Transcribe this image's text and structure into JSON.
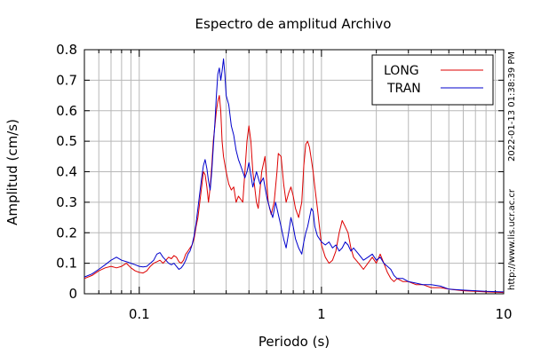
{
  "chart_data": {
    "type": "line",
    "title": "Espectro de amplitud Archivo",
    "xlabel": "Periodo (s)",
    "ylabel": "Amplitud (cm/s)",
    "x_scale": "log",
    "xlim": [
      0.05,
      10
    ],
    "ylim": [
      0,
      0.8
    ],
    "grid": true,
    "legend_position": "top-right",
    "x_ticks": [
      {
        "value": 0.1,
        "label": "0.1"
      },
      {
        "value": 1,
        "label": "1"
      },
      {
        "value": 10,
        "label": "10"
      }
    ],
    "y_ticks": [
      {
        "value": 0,
        "label": "0"
      },
      {
        "value": 0.1,
        "label": "0.1"
      },
      {
        "value": 0.2,
        "label": "0.2"
      },
      {
        "value": 0.3,
        "label": "0.3"
      },
      {
        "value": 0.4,
        "label": "0.4"
      },
      {
        "value": 0.5,
        "label": "0.5"
      },
      {
        "value": 0.6,
        "label": "0.6"
      },
      {
        "value": 0.7,
        "label": "0.7"
      },
      {
        "value": 0.8,
        "label": "0.8"
      }
    ],
    "series": [
      {
        "name": "LONG",
        "color": "#dd0000",
        "points": [
          [
            0.05,
            0.05
          ],
          [
            0.055,
            0.06
          ],
          [
            0.06,
            0.075
          ],
          [
            0.065,
            0.085
          ],
          [
            0.07,
            0.09
          ],
          [
            0.075,
            0.085
          ],
          [
            0.08,
            0.09
          ],
          [
            0.085,
            0.1
          ],
          [
            0.09,
            0.085
          ],
          [
            0.095,
            0.075
          ],
          [
            0.1,
            0.07
          ],
          [
            0.105,
            0.068
          ],
          [
            0.11,
            0.075
          ],
          [
            0.115,
            0.09
          ],
          [
            0.12,
            0.1
          ],
          [
            0.125,
            0.105
          ],
          [
            0.13,
            0.11
          ],
          [
            0.135,
            0.1
          ],
          [
            0.14,
            0.11
          ],
          [
            0.145,
            0.12
          ],
          [
            0.15,
            0.115
          ],
          [
            0.155,
            0.125
          ],
          [
            0.16,
            0.12
          ],
          [
            0.165,
            0.105
          ],
          [
            0.17,
            0.1
          ],
          [
            0.175,
            0.11
          ],
          [
            0.18,
            0.13
          ],
          [
            0.185,
            0.14
          ],
          [
            0.19,
            0.15
          ],
          [
            0.195,
            0.16
          ],
          [
            0.2,
            0.18
          ],
          [
            0.205,
            0.22
          ],
          [
            0.21,
            0.25
          ],
          [
            0.215,
            0.3
          ],
          [
            0.22,
            0.35
          ],
          [
            0.225,
            0.4
          ],
          [
            0.23,
            0.39
          ],
          [
            0.235,
            0.35
          ],
          [
            0.24,
            0.3
          ],
          [
            0.245,
            0.35
          ],
          [
            0.25,
            0.42
          ],
          [
            0.255,
            0.5
          ],
          [
            0.26,
            0.55
          ],
          [
            0.265,
            0.6
          ],
          [
            0.27,
            0.63
          ],
          [
            0.275,
            0.65
          ],
          [
            0.28,
            0.6
          ],
          [
            0.285,
            0.5
          ],
          [
            0.29,
            0.45
          ],
          [
            0.3,
            0.4
          ],
          [
            0.31,
            0.36
          ],
          [
            0.32,
            0.34
          ],
          [
            0.33,
            0.35
          ],
          [
            0.34,
            0.3
          ],
          [
            0.35,
            0.32
          ],
          [
            0.36,
            0.31
          ],
          [
            0.37,
            0.3
          ],
          [
            0.38,
            0.4
          ],
          [
            0.39,
            0.5
          ],
          [
            0.4,
            0.55
          ],
          [
            0.41,
            0.5
          ],
          [
            0.42,
            0.4
          ],
          [
            0.43,
            0.35
          ],
          [
            0.44,
            0.3
          ],
          [
            0.45,
            0.28
          ],
          [
            0.47,
            0.4
          ],
          [
            0.49,
            0.45
          ],
          [
            0.51,
            0.3
          ],
          [
            0.53,
            0.26
          ],
          [
            0.55,
            0.3
          ],
          [
            0.57,
            0.4
          ],
          [
            0.58,
            0.46
          ],
          [
            0.6,
            0.45
          ],
          [
            0.62,
            0.36
          ],
          [
            0.64,
            0.3
          ],
          [
            0.66,
            0.33
          ],
          [
            0.68,
            0.35
          ],
          [
            0.7,
            0.32
          ],
          [
            0.72,
            0.28
          ],
          [
            0.75,
            0.25
          ],
          [
            0.78,
            0.3
          ],
          [
            0.8,
            0.42
          ],
          [
            0.82,
            0.49
          ],
          [
            0.84,
            0.5
          ],
          [
            0.86,
            0.48
          ],
          [
            0.88,
            0.44
          ],
          [
            0.9,
            0.4
          ],
          [
            0.92,
            0.35
          ],
          [
            0.95,
            0.28
          ],
          [
            1.0,
            0.16
          ],
          [
            1.05,
            0.12
          ],
          [
            1.1,
            0.1
          ],
          [
            1.15,
            0.11
          ],
          [
            1.2,
            0.14
          ],
          [
            1.25,
            0.2
          ],
          [
            1.3,
            0.24
          ],
          [
            1.35,
            0.22
          ],
          [
            1.4,
            0.2
          ],
          [
            1.45,
            0.15
          ],
          [
            1.5,
            0.12
          ],
          [
            1.6,
            0.1
          ],
          [
            1.7,
            0.08
          ],
          [
            1.8,
            0.1
          ],
          [
            1.9,
            0.12
          ],
          [
            2.0,
            0.1
          ],
          [
            2.1,
            0.13
          ],
          [
            2.2,
            0.1
          ],
          [
            2.3,
            0.07
          ],
          [
            2.4,
            0.05
          ],
          [
            2.5,
            0.04
          ],
          [
            2.6,
            0.05
          ],
          [
            2.8,
            0.04
          ],
          [
            3.0,
            0.04
          ],
          [
            3.3,
            0.03
          ],
          [
            3.6,
            0.03
          ],
          [
            4.0,
            0.02
          ],
          [
            4.5,
            0.02
          ],
          [
            5.0,
            0.015
          ],
          [
            6.0,
            0.01
          ],
          [
            7.0,
            0.008
          ],
          [
            8.0,
            0.006
          ],
          [
            9.0,
            0.005
          ],
          [
            10.0,
            0.004
          ]
        ]
      },
      {
        "name": "TRAN",
        "color": "#0000cc",
        "points": [
          [
            0.05,
            0.055
          ],
          [
            0.055,
            0.065
          ],
          [
            0.06,
            0.08
          ],
          [
            0.065,
            0.095
          ],
          [
            0.07,
            0.11
          ],
          [
            0.075,
            0.12
          ],
          [
            0.08,
            0.11
          ],
          [
            0.085,
            0.105
          ],
          [
            0.09,
            0.1
          ],
          [
            0.095,
            0.095
          ],
          [
            0.1,
            0.09
          ],
          [
            0.105,
            0.088
          ],
          [
            0.11,
            0.09
          ],
          [
            0.115,
            0.1
          ],
          [
            0.12,
            0.11
          ],
          [
            0.125,
            0.13
          ],
          [
            0.13,
            0.135
          ],
          [
            0.135,
            0.12
          ],
          [
            0.14,
            0.11
          ],
          [
            0.145,
            0.1
          ],
          [
            0.15,
            0.095
          ],
          [
            0.155,
            0.1
          ],
          [
            0.16,
            0.09
          ],
          [
            0.165,
            0.08
          ],
          [
            0.17,
            0.085
          ],
          [
            0.175,
            0.095
          ],
          [
            0.18,
            0.11
          ],
          [
            0.185,
            0.13
          ],
          [
            0.19,
            0.14
          ],
          [
            0.195,
            0.16
          ],
          [
            0.2,
            0.19
          ],
          [
            0.205,
            0.23
          ],
          [
            0.21,
            0.28
          ],
          [
            0.215,
            0.33
          ],
          [
            0.22,
            0.38
          ],
          [
            0.225,
            0.42
          ],
          [
            0.23,
            0.44
          ],
          [
            0.235,
            0.41
          ],
          [
            0.24,
            0.37
          ],
          [
            0.245,
            0.34
          ],
          [
            0.25,
            0.4
          ],
          [
            0.255,
            0.48
          ],
          [
            0.26,
            0.56
          ],
          [
            0.265,
            0.65
          ],
          [
            0.27,
            0.72
          ],
          [
            0.275,
            0.74
          ],
          [
            0.28,
            0.7
          ],
          [
            0.285,
            0.73
          ],
          [
            0.29,
            0.77
          ],
          [
            0.295,
            0.72
          ],
          [
            0.3,
            0.65
          ],
          [
            0.31,
            0.62
          ],
          [
            0.32,
            0.55
          ],
          [
            0.33,
            0.52
          ],
          [
            0.34,
            0.47
          ],
          [
            0.35,
            0.44
          ],
          [
            0.36,
            0.42
          ],
          [
            0.37,
            0.4
          ],
          [
            0.38,
            0.38
          ],
          [
            0.39,
            0.4
          ],
          [
            0.4,
            0.43
          ],
          [
            0.41,
            0.39
          ],
          [
            0.42,
            0.35
          ],
          [
            0.44,
            0.4
          ],
          [
            0.46,
            0.36
          ],
          [
            0.48,
            0.38
          ],
          [
            0.5,
            0.32
          ],
          [
            0.52,
            0.28
          ],
          [
            0.54,
            0.25
          ],
          [
            0.56,
            0.3
          ],
          [
            0.58,
            0.26
          ],
          [
            0.6,
            0.22
          ],
          [
            0.62,
            0.18
          ],
          [
            0.64,
            0.15
          ],
          [
            0.66,
            0.2
          ],
          [
            0.68,
            0.25
          ],
          [
            0.7,
            0.22
          ],
          [
            0.72,
            0.18
          ],
          [
            0.75,
            0.15
          ],
          [
            0.78,
            0.13
          ],
          [
            0.8,
            0.17
          ],
          [
            0.82,
            0.2
          ],
          [
            0.84,
            0.22
          ],
          [
            0.86,
            0.25
          ],
          [
            0.88,
            0.28
          ],
          [
            0.9,
            0.27
          ],
          [
            0.92,
            0.22
          ],
          [
            0.95,
            0.19
          ],
          [
            1.0,
            0.17
          ],
          [
            1.05,
            0.16
          ],
          [
            1.1,
            0.17
          ],
          [
            1.15,
            0.15
          ],
          [
            1.2,
            0.16
          ],
          [
            1.25,
            0.14
          ],
          [
            1.3,
            0.15
          ],
          [
            1.35,
            0.17
          ],
          [
            1.4,
            0.16
          ],
          [
            1.45,
            0.14
          ],
          [
            1.5,
            0.15
          ],
          [
            1.6,
            0.13
          ],
          [
            1.7,
            0.11
          ],
          [
            1.8,
            0.12
          ],
          [
            1.9,
            0.13
          ],
          [
            2.0,
            0.11
          ],
          [
            2.1,
            0.12
          ],
          [
            2.2,
            0.1
          ],
          [
            2.3,
            0.09
          ],
          [
            2.4,
            0.08
          ],
          [
            2.5,
            0.06
          ],
          [
            2.6,
            0.05
          ],
          [
            2.8,
            0.05
          ],
          [
            3.0,
            0.04
          ],
          [
            3.3,
            0.035
          ],
          [
            3.6,
            0.03
          ],
          [
            4.0,
            0.03
          ],
          [
            4.5,
            0.025
          ],
          [
            5.0,
            0.015
          ],
          [
            6.0,
            0.012
          ],
          [
            7.0,
            0.01
          ],
          [
            8.0,
            0.008
          ],
          [
            9.0,
            0.007
          ],
          [
            10.0,
            0.006
          ]
        ]
      }
    ],
    "side_texts": [
      "2022-01-13 01:38:39 PM",
      "http://www.lis.ucr.ac.cr"
    ]
  }
}
